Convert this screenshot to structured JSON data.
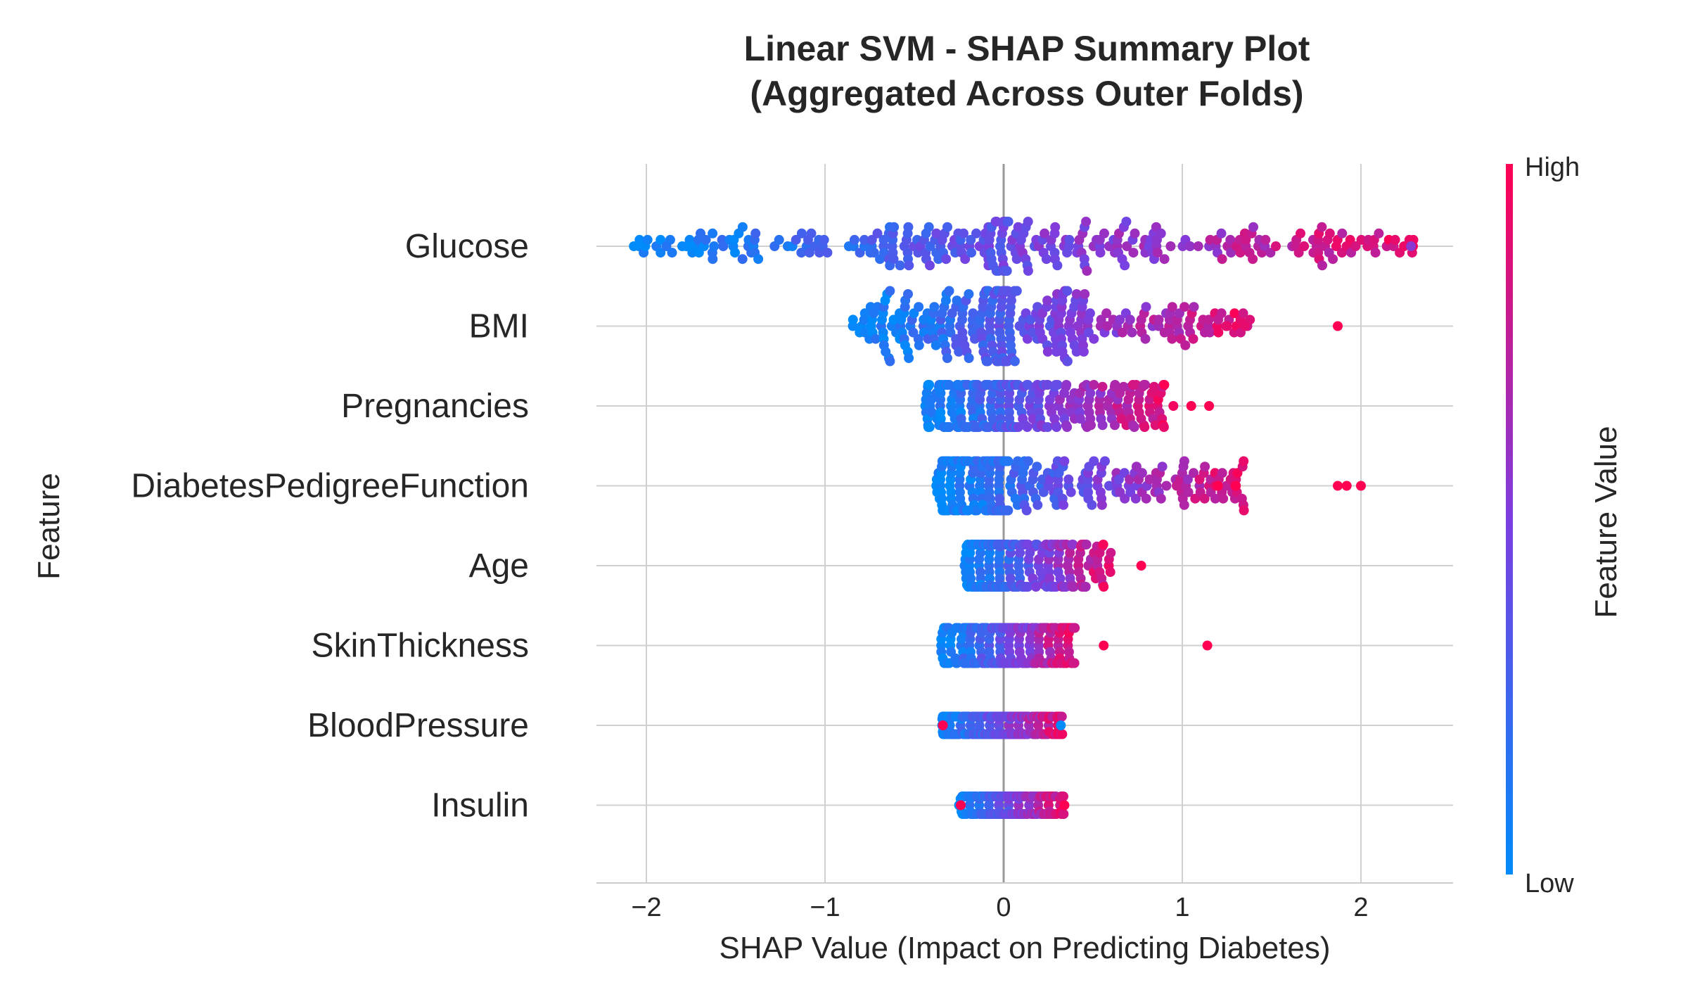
{
  "chart_data": {
    "type": "scatter",
    "subtype": "shap-beeswarm",
    "title_line1": "Linear SVM - SHAP Summary Plot",
    "title_line2": "(Aggregated Across Outer Folds)",
    "xlabel": "SHAP Value (Impact on Predicting Diabetes)",
    "ylabel": "Feature",
    "xlim": [
      -2.3,
      2.5
    ],
    "xticks": [
      -2,
      -1,
      0,
      1,
      2
    ],
    "xtick_labels": [
      "−2",
      "−1",
      "0",
      "1",
      "2"
    ],
    "grid": true,
    "colorbar": {
      "label": "Feature Value",
      "high_label": "High",
      "low_label": "Low",
      "low_color": "#008bfb",
      "mid_color": "#7c3ee0",
      "high_color": "#ff0052"
    },
    "features": [
      {
        "name": "Glucose",
        "min": -2.07,
        "max": 2.3,
        "spread": 0.7,
        "min_low": -2.07,
        "max_high": 2.3,
        "outliers": [
          [
            -2.07,
            0.0
          ],
          [
            -1.75,
            0.0
          ],
          [
            2.28,
            0.55
          ]
        ]
      },
      {
        "name": "BMI",
        "min": -0.85,
        "max": 1.87,
        "spread": 1.0,
        "min_low": -0.85,
        "max_high": 1.4,
        "outliers": [
          [
            1.87,
            1.0
          ],
          [
            1.35,
            0.9
          ],
          [
            1.25,
            0.9
          ]
        ]
      },
      {
        "name": "Pregnancies",
        "min": -0.45,
        "max": 1.15,
        "spread": 0.6,
        "min_low": -0.45,
        "max_high": 0.9,
        "outliers": [
          [
            1.15,
            1.0
          ],
          [
            1.05,
            1.0
          ],
          [
            0.95,
            0.95
          ]
        ]
      },
      {
        "name": "DiabetesPedigreeFunction",
        "min": -0.38,
        "max": 2.0,
        "spread": 0.7,
        "min_low": -0.38,
        "max_high": 1.35,
        "outliers": [
          [
            2.0,
            1.0
          ],
          [
            1.92,
            1.0
          ],
          [
            1.87,
            1.0
          ],
          [
            1.3,
            1.0
          ],
          [
            1.2,
            1.0
          ]
        ]
      },
      {
        "name": "Age",
        "min": -0.22,
        "max": 0.77,
        "spread": 0.6,
        "min_low": -0.22,
        "max_high": 0.6,
        "outliers": [
          [
            0.77,
            1.0
          ]
        ]
      },
      {
        "name": "SkinThickness",
        "min": -0.35,
        "max": 1.14,
        "spread": 0.5,
        "min_low": -0.35,
        "max_high": 0.4,
        "outliers": [
          [
            1.14,
            1.0
          ],
          [
            0.56,
            1.0
          ]
        ]
      },
      {
        "name": "BloodPressure",
        "min": -0.35,
        "max": 0.33,
        "spread": 0.25,
        "min_low": -0.35,
        "max_high": 0.33,
        "outliers": [
          [
            -0.34,
            1.0
          ],
          [
            0.32,
            0.0
          ]
        ]
      },
      {
        "name": "Insulin",
        "min": -0.25,
        "max": 0.34,
        "spread": 0.25,
        "min_low": -0.25,
        "max_high": 0.34,
        "outliers": [
          [
            -0.24,
            1.0
          ],
          [
            0.34,
            1.0
          ]
        ]
      }
    ]
  }
}
